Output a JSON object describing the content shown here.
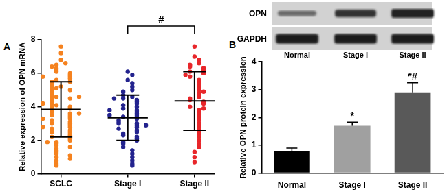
{
  "chart_data": [
    {
      "panel": "A",
      "type": "strip",
      "y_label": "Relative expression of OPN mRNA",
      "categories": [
        "SCLC",
        "Stage I",
        "Stage II"
      ],
      "colors": [
        "#f5821f",
        "#23238e",
        "#e8262a"
      ],
      "marker": "circle",
      "values": [
        [
          7.6,
          7.2,
          6.8,
          6.6,
          6.5,
          6.3,
          6.2,
          6.1,
          6.0,
          5.9,
          5.8,
          5.7,
          5.6,
          5.5,
          5.5,
          5.4,
          5.3,
          5.2,
          5.1,
          5.0,
          5.0,
          4.9,
          4.8,
          4.7,
          4.6,
          4.5,
          4.5,
          4.4,
          4.3,
          4.2,
          4.1,
          4.0,
          4.0,
          3.9,
          3.8,
          3.7,
          3.6,
          3.5,
          3.5,
          3.4,
          3.3,
          3.2,
          3.1,
          3.0,
          3.0,
          2.9,
          2.8,
          2.7,
          2.6,
          2.5,
          2.5,
          2.4,
          2.3,
          2.2,
          2.1,
          2.0,
          1.9,
          1.8,
          1.7,
          1.6,
          1.5,
          1.4,
          1.3,
          1.2,
          1.1,
          1.0,
          0.9,
          0.8,
          0.7,
          0.6,
          3.6,
          4.6,
          5.2,
          2.8,
          3.3,
          4.2,
          5.8,
          1.9,
          6.4,
          0.5
        ],
        [
          6.1,
          5.9,
          5.6,
          5.4,
          5.2,
          5.0,
          4.9,
          4.7,
          4.6,
          4.5,
          4.4,
          4.3,
          4.2,
          4.1,
          4.0,
          3.9,
          3.8,
          3.7,
          3.6,
          3.5,
          3.4,
          3.4,
          3.3,
          3.2,
          3.1,
          3.0,
          3.0,
          2.9,
          2.8,
          2.7,
          2.6,
          2.5,
          2.4,
          2.3,
          2.2,
          2.1,
          2.0,
          1.9,
          1.8,
          1.6,
          1.4,
          1.2,
          1.0,
          0.8,
          0.6,
          0.5,
          3.5,
          2.9,
          3.8,
          4.5
        ],
        [
          7.6,
          7.0,
          6.8,
          6.6,
          6.5,
          6.4,
          6.3,
          6.2,
          6.1,
          6.0,
          5.8,
          5.6,
          5.4,
          5.2,
          5.0,
          4.8,
          4.6,
          4.5,
          4.4,
          4.3,
          4.2,
          4.0,
          3.8,
          3.6,
          3.4,
          3.2,
          3.0,
          2.8,
          2.6,
          2.4,
          2.2,
          2.0,
          1.8,
          1.6,
          1.3,
          1.0,
          0.7,
          5.9,
          4.9,
          3.9
        ]
      ],
      "means": [
        3.85,
        3.35,
        4.35
      ],
      "sds": [
        1.65,
        1.35,
        1.75
      ],
      "ylim": [
        0,
        8
      ],
      "yticks": [
        0,
        2,
        4,
        6,
        8
      ],
      "grid": false,
      "annotations": [
        {
          "text": "#",
          "from": "Stage I",
          "to": "Stage II"
        }
      ]
    },
    {
      "panel": "B",
      "type": "bar",
      "y_label": "Relative OPN protein expression",
      "categories": [
        "Normal",
        "Stage I",
        "Stage II"
      ],
      "values": [
        0.8,
        1.7,
        2.9
      ],
      "errors": [
        0.1,
        0.13,
        0.35
      ],
      "colors": [
        "#000000",
        "#a0a0a0",
        "#595959"
      ],
      "ylim": [
        0,
        4
      ],
      "yticks": [
        0,
        1,
        2,
        3,
        4
      ],
      "grid": false,
      "annotations": [
        {
          "category": "Stage I",
          "text": "*"
        },
        {
          "category": "Stage II",
          "text": "*#"
        }
      ],
      "blot": {
        "rows": [
          "OPN",
          "GAPDH"
        ],
        "lanes": [
          "Normal",
          "Stage I",
          "Stage II"
        ]
      }
    }
  ]
}
